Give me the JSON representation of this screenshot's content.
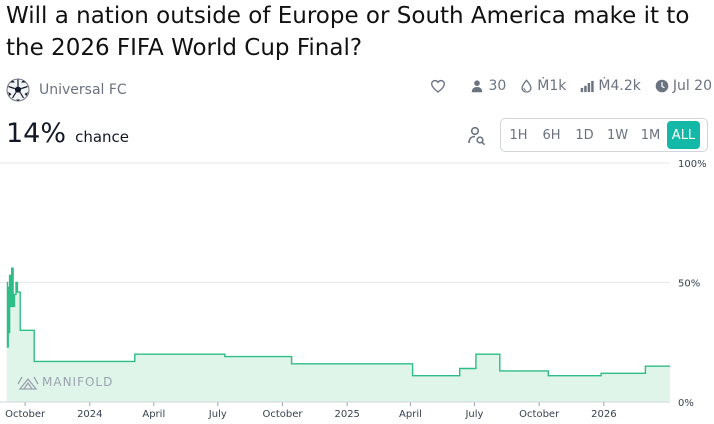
{
  "question": {
    "title": "Will a nation outside of Europe or South America make it to the 2026 FIFA World Cup Final?"
  },
  "creator": {
    "name": "Universal FC",
    "avatar_icon": "soccer-ball-icon"
  },
  "stats": {
    "traders": "30",
    "liquidity": "Ṁ1k",
    "volume": "Ṁ4.2k",
    "close_date": "Jul 20"
  },
  "probability": {
    "value": "14%",
    "label": "chance"
  },
  "time_ranges": {
    "options": [
      "1H",
      "6H",
      "1D",
      "1W",
      "1M",
      "ALL"
    ],
    "selected": "ALL"
  },
  "chart_data": {
    "type": "area",
    "title": "",
    "xlabel": "",
    "ylabel": "",
    "ylim": [
      0,
      100
    ],
    "y_ticks": [
      "100%",
      "50%",
      "0%"
    ],
    "x_ticks": [
      "October",
      "2024",
      "April",
      "July",
      "October",
      "2025",
      "April",
      "July",
      "October",
      "2026"
    ],
    "watermark": "MANIFOLD",
    "colors": {
      "line": "#2ebd86",
      "fill": "#dff5ea"
    },
    "series": [
      {
        "x": [
          "2023-09-05",
          "2023-09-06",
          "2023-09-07",
          "2023-09-08",
          "2023-09-09",
          "2023-09-10",
          "2023-09-11",
          "2023-09-12",
          "2023-09-14",
          "2023-09-16",
          "2023-09-18",
          "2023-09-20",
          "2023-09-24",
          "2023-10-03",
          "2023-10-14",
          "2023-12-24",
          "2024-03-05",
          "2024-04-25",
          "2024-07-11",
          "2024-08-20",
          "2024-10-14",
          "2025-01-08",
          "2025-04-03",
          "2025-04-04",
          "2025-06-10",
          "2025-06-25",
          "2025-07-03",
          "2025-08-06",
          "2025-09-08",
          "2025-10-14",
          "2025-11-28",
          "2025-12-28",
          "2026-03-01",
          "2026-03-19"
        ],
        "y": [
          50,
          23,
          48,
          29,
          53,
          43,
          40,
          56,
          40,
          45,
          50,
          46,
          30,
          30,
          17,
          17,
          20,
          20,
          19,
          19,
          16,
          16,
          16,
          11,
          14,
          14,
          20,
          13,
          13,
          11,
          11,
          12,
          15,
          15
        ]
      }
    ]
  }
}
